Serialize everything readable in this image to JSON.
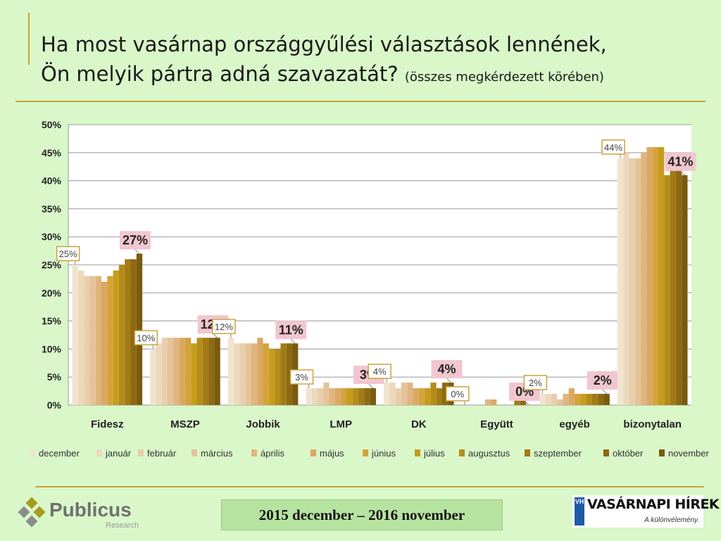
{
  "title": {
    "line1": "Ha most vasárnap országgyűlési választások lennének,",
    "line2": "Ön melyik pártra adná szavazatát?",
    "subtitle": "(összes megkérdezett körében)"
  },
  "footer": {
    "period": "2015 december – 2016 november",
    "logo_left": "Publicus",
    "logo_left_sub": "Research",
    "logo_right": "VASÁRNAPI HÍREK",
    "logo_right_badge": "VH",
    "logo_right_tag": "A különvélemény."
  },
  "chart_data": {
    "type": "bar",
    "categories": [
      "Fidesz",
      "MSZP",
      "Jobbik",
      "LMP",
      "DK",
      "Együtt",
      "egyéb",
      "bizonytalan"
    ],
    "series": [
      {
        "name": "december",
        "color": "#f1e4cf",
        "values": [
          25,
          10,
          12,
          3,
          4,
          0,
          2,
          44
        ]
      },
      {
        "name": "január",
        "color": "#ecd9bd",
        "values": [
          24,
          11,
          11,
          3,
          4,
          0,
          2,
          45
        ]
      },
      {
        "name": "február",
        "color": "#e8ceac",
        "values": [
          23,
          12,
          11,
          3,
          3,
          0,
          2,
          44
        ]
      },
      {
        "name": "március",
        "color": "#e4c39a",
        "values": [
          23,
          12,
          11,
          4,
          4,
          0,
          1,
          44
        ]
      },
      {
        "name": "április",
        "color": "#e0b57e",
        "values": [
          23,
          12,
          11,
          3,
          4,
          1,
          2,
          45
        ]
      },
      {
        "name": "május",
        "color": "#dba863",
        "values": [
          22,
          12,
          12,
          3,
          3,
          1,
          3,
          46
        ]
      },
      {
        "name": "június",
        "color": "#d4a33a",
        "values": [
          23,
          12,
          11,
          3,
          3,
          0,
          2,
          46
        ]
      },
      {
        "name": "július",
        "color": "#c69c1c",
        "values": [
          24,
          11,
          10,
          3,
          3,
          0,
          2,
          46
        ]
      },
      {
        "name": "augusztus",
        "color": "#b58c19",
        "values": [
          25,
          12,
          10,
          3,
          4,
          0,
          2,
          41
        ]
      },
      {
        "name": "szeptember",
        "color": "#a27a16",
        "values": [
          26,
          12,
          11,
          3,
          3,
          1,
          2,
          42
        ]
      },
      {
        "name": "október",
        "color": "#8d6912",
        "values": [
          26,
          12,
          11,
          3,
          4,
          1,
          2,
          42
        ]
      },
      {
        "name": "november",
        "color": "#7a5a10",
        "values": [
          27,
          12,
          11,
          3,
          4,
          0,
          2,
          41
        ]
      }
    ],
    "first_labels": [
      "25%",
      "10%",
      "12%",
      "3%",
      "4%",
      "0%",
      "2%",
      "44%"
    ],
    "last_labels": [
      "27%",
      "12%",
      "11%",
      "3%",
      "4%",
      "0%",
      "2%",
      "41%"
    ],
    "ylim": [
      0,
      50
    ],
    "yticks": [
      "0%",
      "5%",
      "10%",
      "15%",
      "20%",
      "25%",
      "30%",
      "35%",
      "40%",
      "45%",
      "50%"
    ],
    "grid": true,
    "legend": "bottom",
    "colors": {
      "frame": "#c9a43a",
      "first_label_border": "#c9a43a",
      "last_label_bg": "#f1c6cf",
      "background": "#d9f7c9"
    }
  }
}
